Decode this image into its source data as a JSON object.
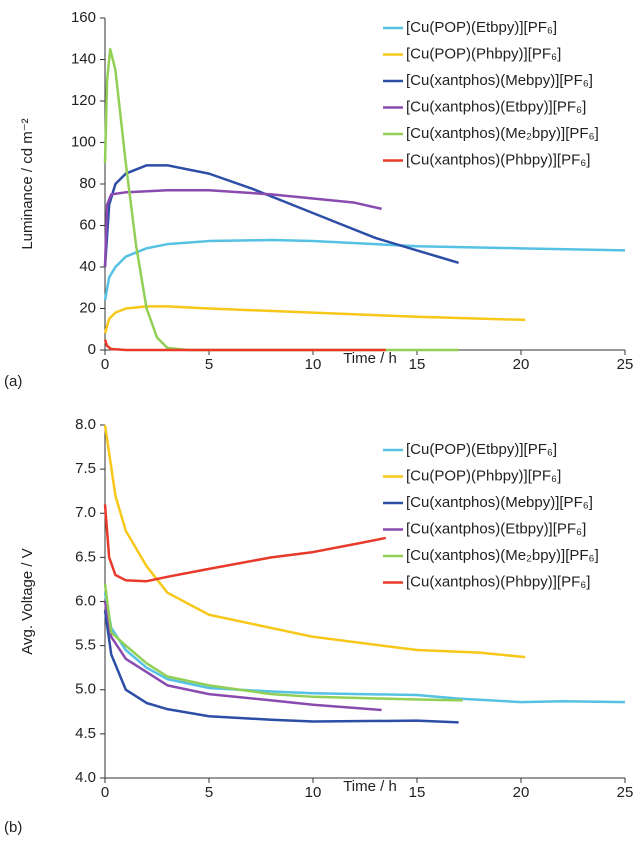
{
  "chart_data": [
    {
      "type": "line",
      "panel_label": "(a)",
      "xlabel": "Time / h",
      "ylabel": "Luminance / cd m⁻²",
      "xlim": [
        0,
        25
      ],
      "xticks": [
        0,
        5,
        10,
        15,
        20,
        25
      ],
      "ylim": [
        0,
        160
      ],
      "yticks": [
        0,
        20,
        40,
        60,
        80,
        100,
        120,
        140,
        160
      ],
      "grid": false,
      "legend": "upper right",
      "series": [
        {
          "name": "[Cu(POP)(Etbpy)][PF₆]",
          "color": "#55c1e3",
          "x": [
            0,
            0.2,
            0.5,
            1,
            2,
            3,
            5,
            8,
            10,
            13,
            15,
            20,
            25
          ],
          "values": [
            24,
            35,
            40,
            45,
            49,
            51,
            52.5,
            53,
            52.5,
            51,
            50,
            49,
            48
          ]
        },
        {
          "name": "[Cu(POP)(Phbpy)][PF₆]",
          "color": "#f7c81a",
          "x": [
            0,
            0.2,
            0.5,
            1,
            2,
            3,
            5,
            10,
            15,
            20.2
          ],
          "values": [
            8,
            15,
            18,
            20,
            21,
            21,
            20,
            18,
            16,
            14.5
          ]
        },
        {
          "name": "[Cu(xantphos)(Mebpy)][PF₆]",
          "color": "#2d4ea6",
          "x": [
            0,
            0.2,
            0.5,
            1,
            2,
            3,
            4,
            5,
            7,
            9,
            11,
            13,
            15,
            16,
            17
          ],
          "values": [
            40,
            70,
            80,
            85,
            89,
            89,
            87,
            85,
            78,
            70,
            62,
            54,
            48,
            45,
            42
          ]
        },
        {
          "name": "[Cu(xantphos)(Etbpy)][PF₆]",
          "color": "#8a4bb0",
          "x": [
            0,
            0.1,
            0.3,
            1,
            3,
            5,
            8,
            10,
            12,
            13.3
          ],
          "values": [
            40,
            70,
            75,
            76,
            77,
            77,
            75,
            73,
            71,
            68
          ]
        },
        {
          "name": "[Cu(xantphos)(Me₂bpy)][PF₆]",
          "color": "#92cf55",
          "x": [
            0,
            0.1,
            0.25,
            0.5,
            1,
            1.5,
            2,
            2.5,
            3,
            4,
            17
          ],
          "values": [
            90,
            130,
            145,
            135,
            90,
            50,
            20,
            6,
            1,
            0,
            0
          ]
        },
        {
          "name": "[Cu(xantphos)(Phbpy)][PF₆]",
          "color": "#e8392a",
          "x": [
            0,
            0.1,
            0.3,
            1,
            13.5
          ],
          "values": [
            5,
            2,
            0.5,
            0,
            0
          ]
        }
      ]
    },
    {
      "type": "line",
      "panel_label": "(b)",
      "xlabel": "Time / h",
      "ylabel": "Avg. Voltage / V",
      "xlim": [
        0,
        25
      ],
      "xticks": [
        0,
        5,
        10,
        15,
        20,
        25
      ],
      "ylim": [
        4,
        8
      ],
      "yticks": [
        {
          "value": 4,
          "label": "4.0"
        },
        4.5,
        {
          "value": 5,
          "label": "5.0"
        },
        5.5,
        {
          "value": 6,
          "label": "6.0"
        },
        6.5,
        {
          "value": 7,
          "label": "7.0"
        },
        7.5,
        {
          "value": 8,
          "label": "8.0"
        }
      ],
      "grid": false,
      "legend": "upper right",
      "series": [
        {
          "name": "[Cu(POP)(Etbpy)][PF₆]",
          "color": "#55c1e3",
          "x": [
            0,
            0.3,
            1,
            2,
            3,
            5,
            8,
            10,
            15,
            17,
            20,
            22,
            25
          ],
          "values": [
            6.1,
            5.7,
            5.45,
            5.25,
            5.12,
            5.02,
            4.98,
            4.96,
            4.94,
            4.9,
            4.86,
            4.87,
            4.86
          ]
        },
        {
          "name": "[Cu(POP)(Phbpy)][PF₆]",
          "color": "#f7c81a",
          "x": [
            0,
            0.5,
            1,
            2,
            3,
            5,
            8,
            10,
            15,
            18,
            20.2
          ],
          "values": [
            8.0,
            7.2,
            6.8,
            6.4,
            6.1,
            5.85,
            5.7,
            5.6,
            5.45,
            5.42,
            5.37
          ]
        },
        {
          "name": "[Cu(xantphos)(Mebpy)][PF₆]",
          "color": "#2d4ea6",
          "x": [
            0,
            0.3,
            1,
            2,
            3,
            5,
            8,
            10,
            15,
            17
          ],
          "values": [
            5.9,
            5.4,
            5.0,
            4.85,
            4.78,
            4.7,
            4.66,
            4.64,
            4.65,
            4.63
          ]
        },
        {
          "name": "[Cu(xantphos)(Etbpy)][PF₆]",
          "color": "#8a4bb0",
          "x": [
            0,
            0.3,
            1,
            2,
            3,
            5,
            8,
            10,
            13.3
          ],
          "values": [
            6.0,
            5.6,
            5.35,
            5.2,
            5.05,
            4.95,
            4.88,
            4.83,
            4.77
          ]
        },
        {
          "name": "[Cu(xantphos)(Me₂bpy)][PF₆]",
          "color": "#92cf55",
          "x": [
            0,
            0.3,
            1,
            2,
            3,
            5,
            8,
            10,
            15,
            17.2
          ],
          "values": [
            6.2,
            5.65,
            5.5,
            5.3,
            5.15,
            5.05,
            4.95,
            4.92,
            4.89,
            4.88
          ]
        },
        {
          "name": "[Cu(xantphos)(Phbpy)][PF₆]",
          "color": "#e8392a",
          "x": [
            0,
            0.2,
            0.5,
            1,
            2,
            3,
            5,
            8,
            10,
            12,
            13.5
          ],
          "values": [
            7.1,
            6.5,
            6.3,
            6.24,
            6.23,
            6.28,
            6.37,
            6.5,
            6.56,
            6.65,
            6.72
          ]
        }
      ]
    }
  ]
}
